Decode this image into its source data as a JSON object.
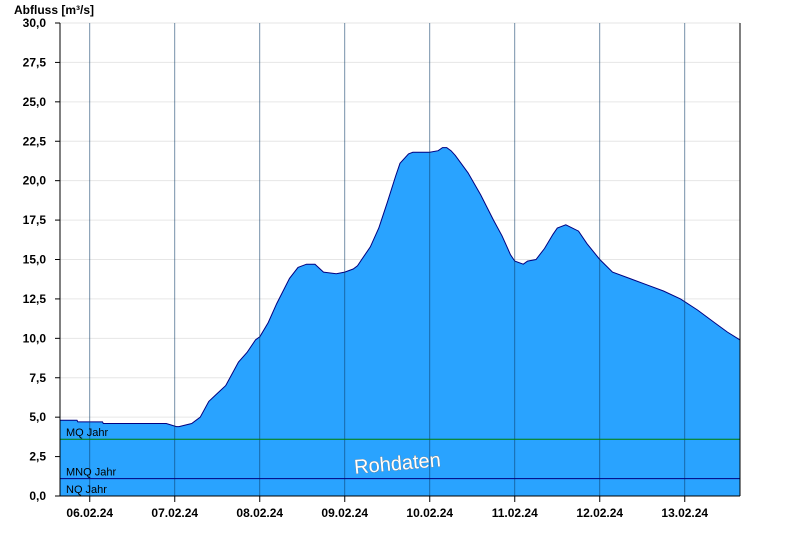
{
  "chart_data": {
    "type": "area",
    "ylabel": "Abfluss [m³/s]",
    "ylim": [
      0,
      30
    ],
    "yticks": [
      "0,0",
      "2,5",
      "5,0",
      "7,5",
      "10,0",
      "12,5",
      "15,0",
      "17,5",
      "20,0",
      "22,5",
      "25,0",
      "27,5",
      "30,0"
    ],
    "xticks": [
      "06.02.24",
      "07.02.24",
      "08.02.24",
      "09.02.24",
      "10.02.24",
      "11.02.24",
      "12.02.24",
      "13.02.24"
    ],
    "xlim_days": [
      5.65,
      13.65
    ],
    "grid": true,
    "fill_color": "#29a3ff",
    "line_color": "#000080",
    "reference_lines": [
      {
        "label": "MQ Jahr",
        "value": 3.6,
        "color": "#008000"
      },
      {
        "label": "MNQ Jahr",
        "value": 1.1,
        "color": "#000080"
      },
      {
        "label": "NQ Jahr",
        "value": 0.0,
        "color": "#000080"
      }
    ],
    "watermark": "Rohdaten",
    "series": [
      {
        "x_days": [
          5.65,
          5.85,
          5.86,
          6.15,
          6.16,
          6.5,
          6.9,
          7.02,
          7.05,
          7.2,
          7.3,
          7.4,
          7.5,
          7.6,
          7.75,
          7.85,
          7.95,
          8.0,
          8.1,
          8.2,
          8.35,
          8.45,
          8.55,
          8.65,
          8.75,
          8.9,
          9.0,
          9.1,
          9.15,
          9.2,
          9.3,
          9.4,
          9.5,
          9.6,
          9.65,
          9.75,
          9.8,
          9.85,
          10.0,
          10.1,
          10.15,
          10.2,
          10.25,
          10.3,
          10.45,
          10.6,
          10.75,
          10.85,
          10.9,
          10.95,
          11.0,
          11.1,
          11.15,
          11.25,
          11.35,
          11.45,
          11.5,
          11.6,
          11.75,
          11.85,
          12.0,
          12.15,
          12.35,
          12.55,
          12.75,
          12.95,
          13.15,
          13.35,
          13.5,
          13.65
        ],
        "y": [
          4.8,
          4.8,
          4.7,
          4.7,
          4.6,
          4.6,
          4.6,
          4.4,
          4.4,
          4.6,
          5.0,
          6.0,
          6.5,
          7.0,
          8.5,
          9.1,
          9.9,
          10.1,
          11.0,
          12.2,
          13.8,
          14.5,
          14.7,
          14.7,
          14.2,
          14.1,
          14.2,
          14.4,
          14.6,
          15.0,
          15.8,
          17.0,
          18.6,
          20.3,
          21.1,
          21.7,
          21.8,
          21.8,
          21.8,
          21.9,
          22.1,
          22.1,
          21.9,
          21.6,
          20.5,
          19.1,
          17.5,
          16.5,
          15.9,
          15.3,
          14.9,
          14.7,
          14.9,
          15.0,
          15.7,
          16.6,
          17.0,
          17.2,
          16.8,
          16.0,
          15.0,
          14.2,
          13.8,
          13.4,
          13.0,
          12.5,
          11.8,
          11.0,
          10.4,
          9.9
        ]
      }
    ]
  }
}
